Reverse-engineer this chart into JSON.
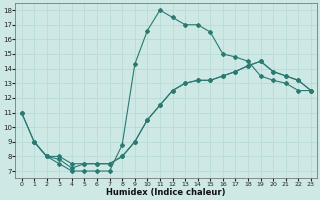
{
  "xlabel": "Humidex (Indice chaleur)",
  "xlim": [
    -0.5,
    23.5
  ],
  "ylim": [
    6.5,
    18.5
  ],
  "yticks": [
    7,
    8,
    9,
    10,
    11,
    12,
    13,
    14,
    15,
    16,
    17,
    18
  ],
  "xticks": [
    0,
    1,
    2,
    3,
    4,
    5,
    6,
    7,
    8,
    9,
    10,
    11,
    12,
    13,
    14,
    15,
    16,
    17,
    18,
    19,
    20,
    21,
    22,
    23
  ],
  "bg_color": "#cde8e5",
  "line_color": "#2a7a72",
  "grid_color": "#b8dbd8",
  "line1_x": [
    0,
    1,
    2,
    3,
    4,
    5,
    6,
    7,
    8,
    9,
    10,
    11,
    12,
    13,
    14,
    15,
    16,
    17,
    18,
    19,
    20,
    21,
    22,
    23
  ],
  "line1_y": [
    11.0,
    9.0,
    8.0,
    7.5,
    7.0,
    7.0,
    7.0,
    7.0,
    8.8,
    14.3,
    16.6,
    18.0,
    17.5,
    17.0,
    17.0,
    16.5,
    15.0,
    14.8,
    14.5,
    13.5,
    13.2,
    13.0,
    12.5,
    12.5
  ],
  "line2_x": [
    1,
    2,
    3,
    4,
    5,
    6,
    7,
    8,
    9,
    10,
    11,
    12,
    13,
    14,
    15,
    16,
    17,
    18,
    19,
    20,
    21,
    22,
    23
  ],
  "line2_y": [
    9.0,
    8.0,
    8.0,
    7.5,
    7.5,
    7.5,
    7.5,
    8.0,
    9.0,
    10.5,
    11.5,
    12.5,
    13.0,
    13.2,
    13.2,
    13.5,
    13.8,
    14.2,
    14.5,
    13.8,
    13.5,
    13.2,
    12.5
  ],
  "line3_x": [
    0,
    1,
    2,
    3,
    4,
    5,
    6,
    7,
    8,
    9,
    10,
    11,
    12,
    13,
    14,
    15,
    16,
    17,
    18,
    19,
    20,
    21,
    22,
    23
  ],
  "line3_y": [
    11.0,
    9.0,
    8.0,
    7.8,
    7.2,
    7.5,
    7.5,
    7.5,
    8.0,
    9.0,
    10.5,
    11.5,
    12.5,
    13.0,
    13.2,
    13.2,
    13.5,
    13.8,
    14.2,
    14.5,
    13.8,
    13.5,
    13.2,
    12.5
  ]
}
